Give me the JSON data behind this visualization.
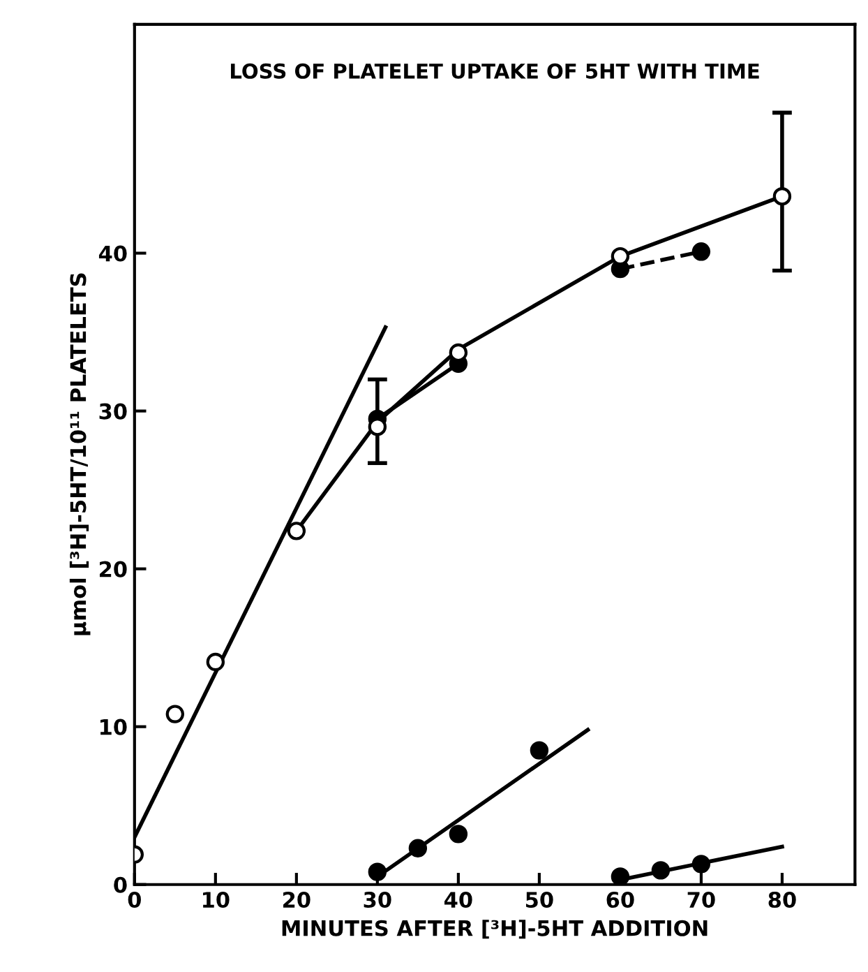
{
  "chart_data": {
    "type": "scatter",
    "title": "LOSS OF PLATELET UPTAKE OF 5HT WITH TIME",
    "xlabel": "MINUTES AFTER [³H]-5HT ADDITION",
    "ylabel": "µmol [³H]-5HT/10¹¹ PLATELETS",
    "xlim": [
      0,
      89
    ],
    "ylim": [
      0,
      54.5
    ],
    "xticks": [
      0,
      10,
      20,
      30,
      40,
      50,
      60,
      70,
      80
    ],
    "yticks": [
      0,
      10,
      20,
      30,
      40
    ],
    "grid": false,
    "legend": false,
    "series": [
      {
        "type": "line",
        "color": "#000000",
        "marker": "none",
        "line_style": "solid",
        "x": [
          0,
          31
        ],
        "values": [
          3.0,
          35.3
        ]
      },
      {
        "type": "line",
        "color": "#000000",
        "marker": "none",
        "line_style": "solid",
        "x": [
          20,
          30,
          40,
          60,
          80
        ],
        "values": [
          22.4,
          29.3,
          33.9,
          39.8,
          43.6
        ]
      },
      {
        "type": "line",
        "color": "#000000",
        "marker": "circle",
        "line_style": "solid",
        "x": [
          30,
          40
        ],
        "values": [
          29.5,
          33.0
        ]
      },
      {
        "type": "line",
        "color": "#000000",
        "marker": "circle",
        "line_style": "dashed",
        "x": [
          60,
          70
        ],
        "values": [
          39.0,
          40.1
        ]
      },
      {
        "color": "#ffffff",
        "marker": "circle",
        "x": [
          0,
          5,
          10,
          20,
          30,
          40,
          60,
          80
        ],
        "values": [
          1.9,
          10.8,
          14.1,
          22.4,
          29.0,
          33.7,
          39.8,
          43.6
        ],
        "errors": [
          null,
          null,
          null,
          null,
          [
            26.7,
            32.0
          ],
          null,
          null,
          [
            38.9,
            48.9
          ]
        ]
      },
      {
        "type": "line",
        "color": "#000000",
        "marker": "none",
        "line_style": "solid",
        "x": [
          30,
          56
        ],
        "values": [
          0.5,
          9.8
        ]
      },
      {
        "color": "#000000",
        "marker": "circle",
        "x": [
          30,
          35,
          40,
          50
        ],
        "values": [
          0.8,
          2.3,
          3.2,
          8.5
        ]
      },
      {
        "type": "line",
        "color": "#000000",
        "marker": "none",
        "line_style": "solid",
        "x": [
          60,
          80
        ],
        "values": [
          0.3,
          2.4
        ]
      },
      {
        "color": "#000000",
        "marker": "circle",
        "x": [
          60,
          65,
          70
        ],
        "values": [
          0.5,
          0.9,
          1.3
        ]
      }
    ]
  }
}
